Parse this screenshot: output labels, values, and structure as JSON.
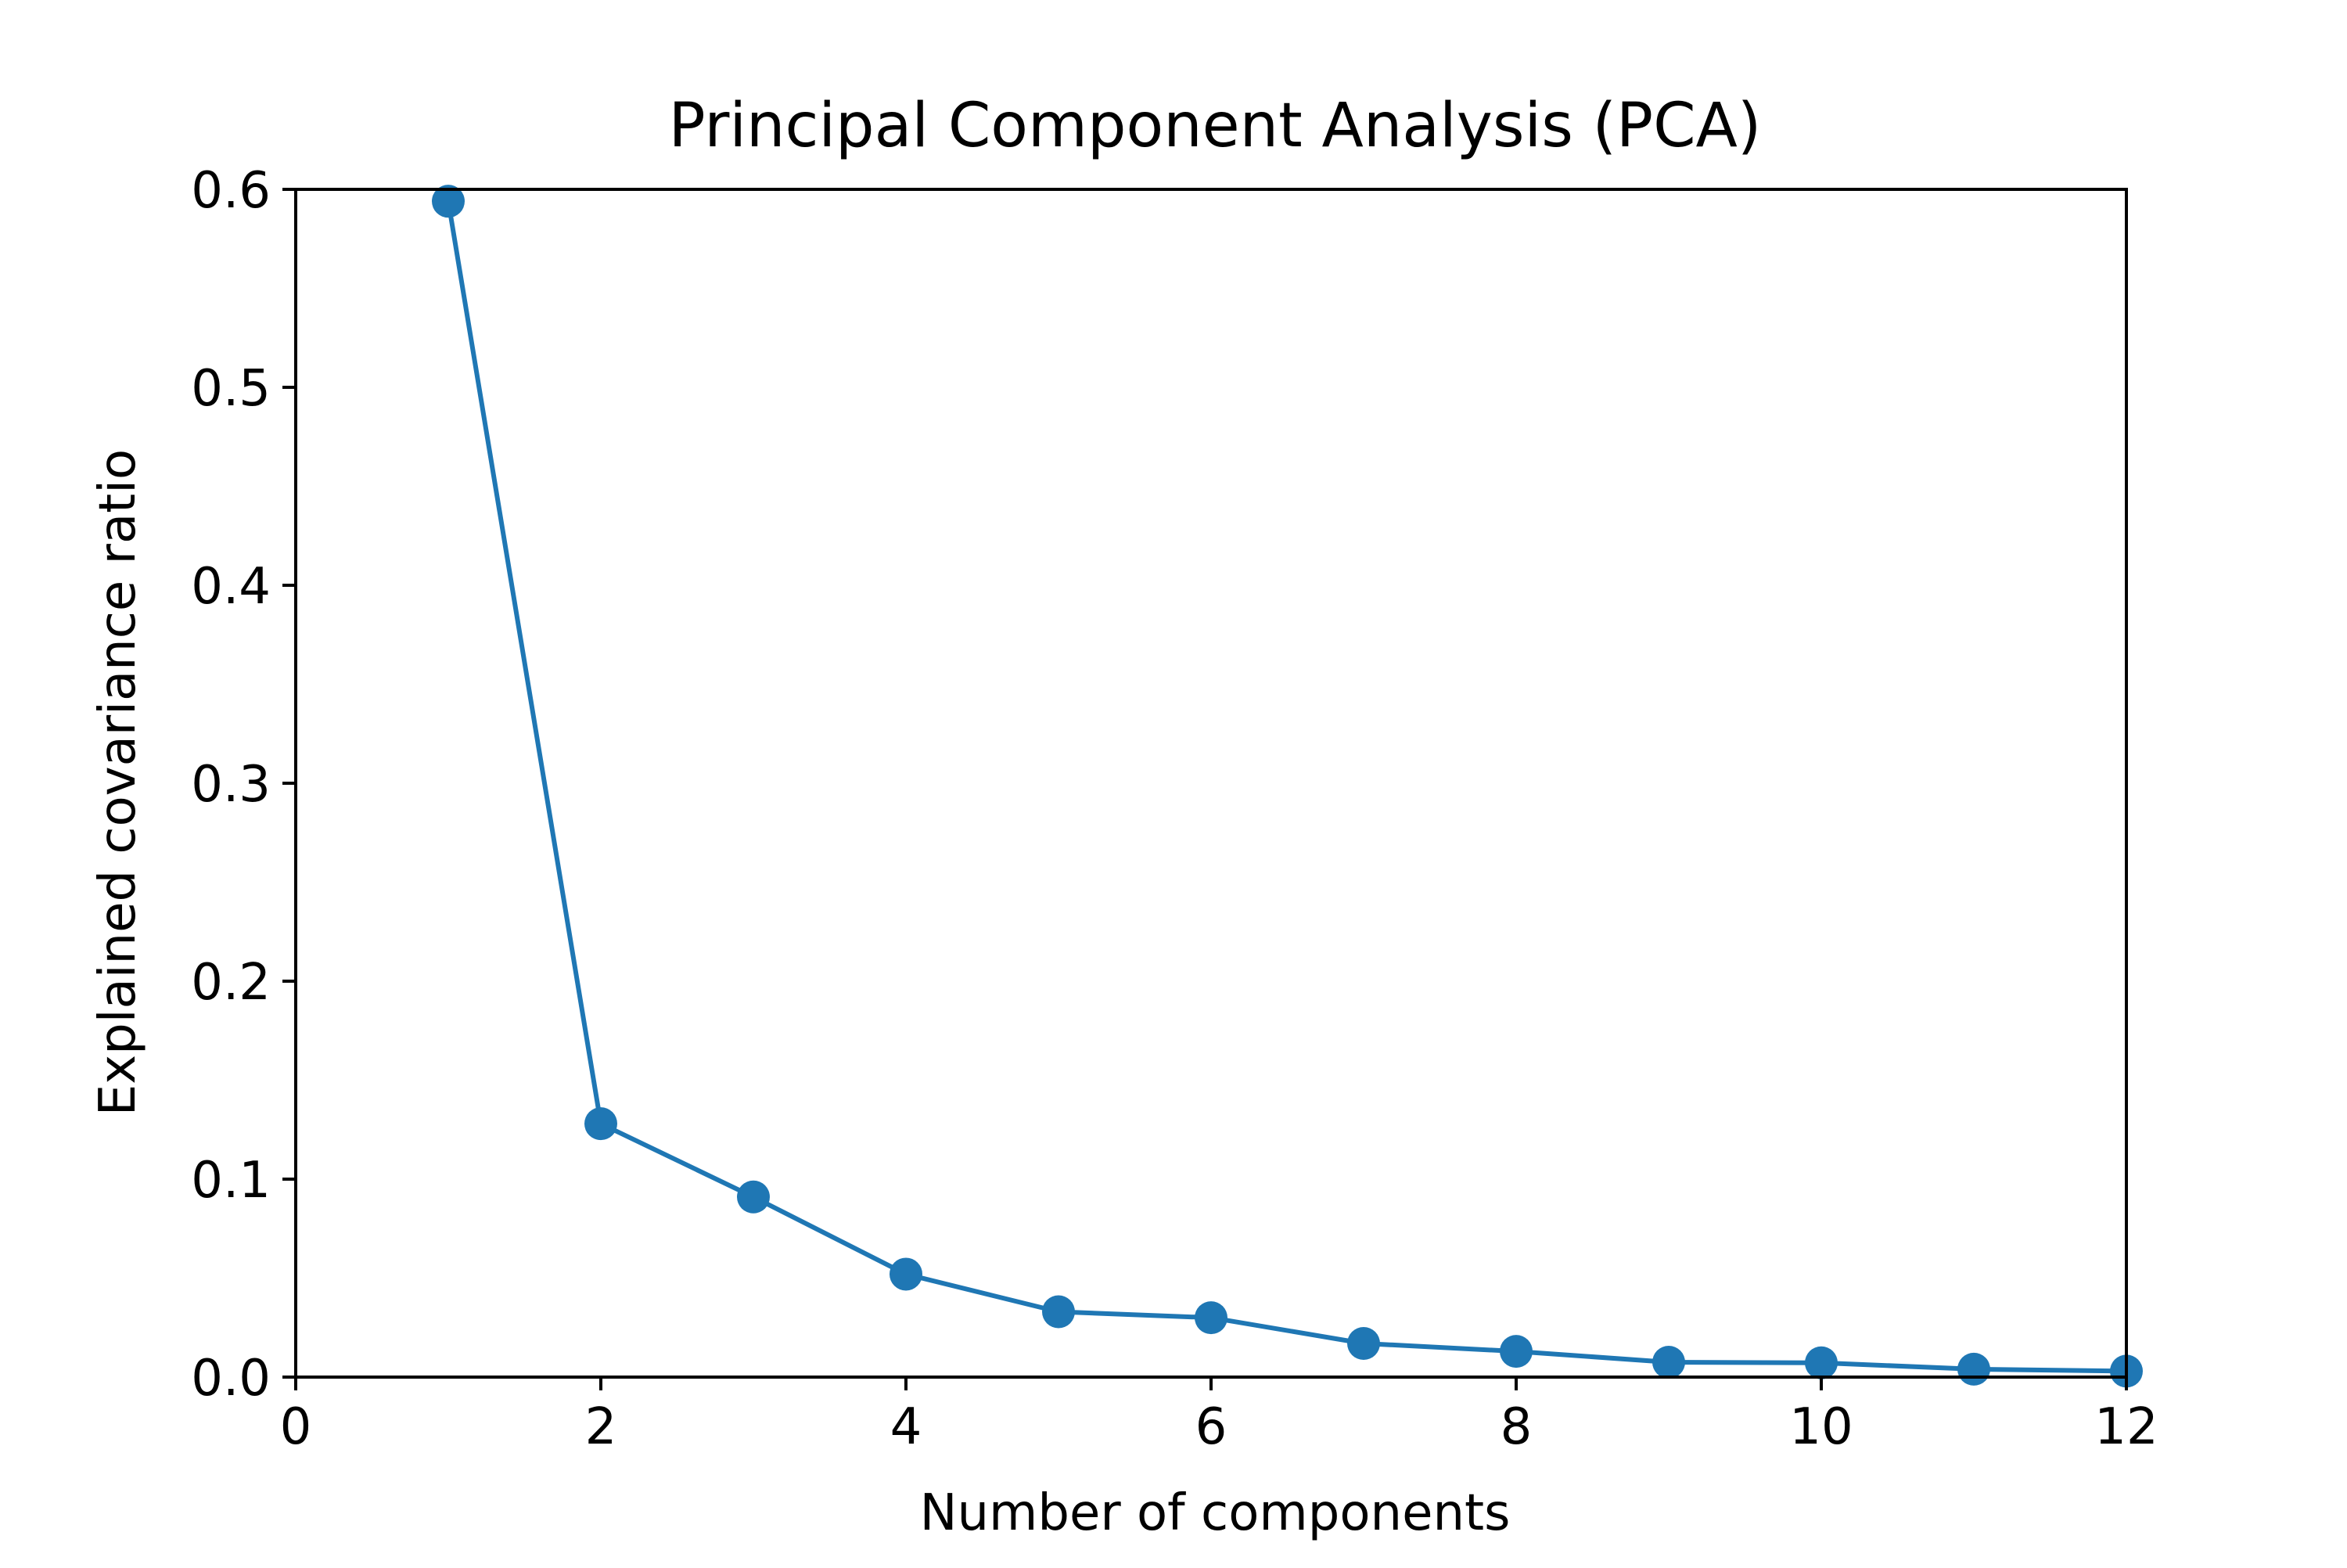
{
  "chart_data": {
    "type": "line",
    "title": "Principal Component Analysis (PCA)",
    "xlabel": "Number of components",
    "ylabel": "Explained covariance ratio",
    "xlim": [
      0,
      12
    ],
    "ylim": [
      0,
      0.6
    ],
    "xticks": [
      0,
      2,
      4,
      6,
      8,
      10,
      12
    ],
    "xtick_labels": [
      "0",
      "2",
      "4",
      "6",
      "8",
      "10",
      "12"
    ],
    "yticks": [
      0.0,
      0.1,
      0.2,
      0.3,
      0.4,
      0.5,
      0.6
    ],
    "ytick_labels": [
      "0.0",
      "0.1",
      "0.2",
      "0.3",
      "0.4",
      "0.5",
      "0.6"
    ],
    "grid": false,
    "legend": false,
    "series": [
      {
        "color": "#1f77b4",
        "marker": "circle",
        "x": [
          1,
          2,
          3,
          4,
          5,
          6,
          7,
          8,
          9,
          10,
          11,
          12
        ],
        "y": [
          0.594,
          0.128,
          0.091,
          0.052,
          0.033,
          0.03,
          0.017,
          0.013,
          0.0075,
          0.0072,
          0.004,
          0.003
        ]
      }
    ]
  }
}
